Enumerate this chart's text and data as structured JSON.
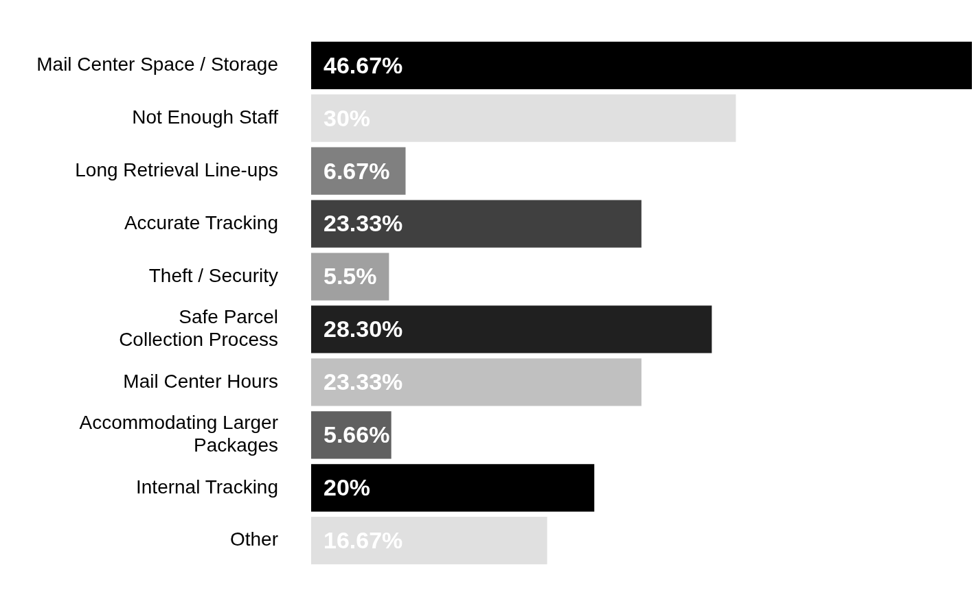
{
  "chart_data": {
    "type": "bar",
    "orientation": "horizontal",
    "categories": [
      "Mail Center Space / Storage",
      "Not Enough Staff",
      "Long Retrieval Line-ups",
      "Accurate Tracking",
      "Theft / Security",
      "Safe Parcel\nCollection Process",
      "Mail Center Hours",
      "Accommodating Larger\nPackages",
      "Internal Tracking",
      "Other"
    ],
    "values": [
      46.67,
      30,
      6.67,
      23.33,
      5.5,
      28.3,
      23.33,
      5.66,
      20,
      16.67
    ],
    "value_labels": [
      "46.67%",
      "30%",
      "6.67%",
      "23.33%",
      "5.5%",
      "28.30%",
      "23.33%",
      "5.66%",
      "20%",
      "16.67%"
    ],
    "colors": [
      "#000000",
      "#e0e0e0",
      "#808080",
      "#404040",
      "#a0a0a0",
      "#202020",
      "#c0c0c0",
      "#606060",
      "#000000",
      "#e0e0e0"
    ],
    "legend": false
  }
}
